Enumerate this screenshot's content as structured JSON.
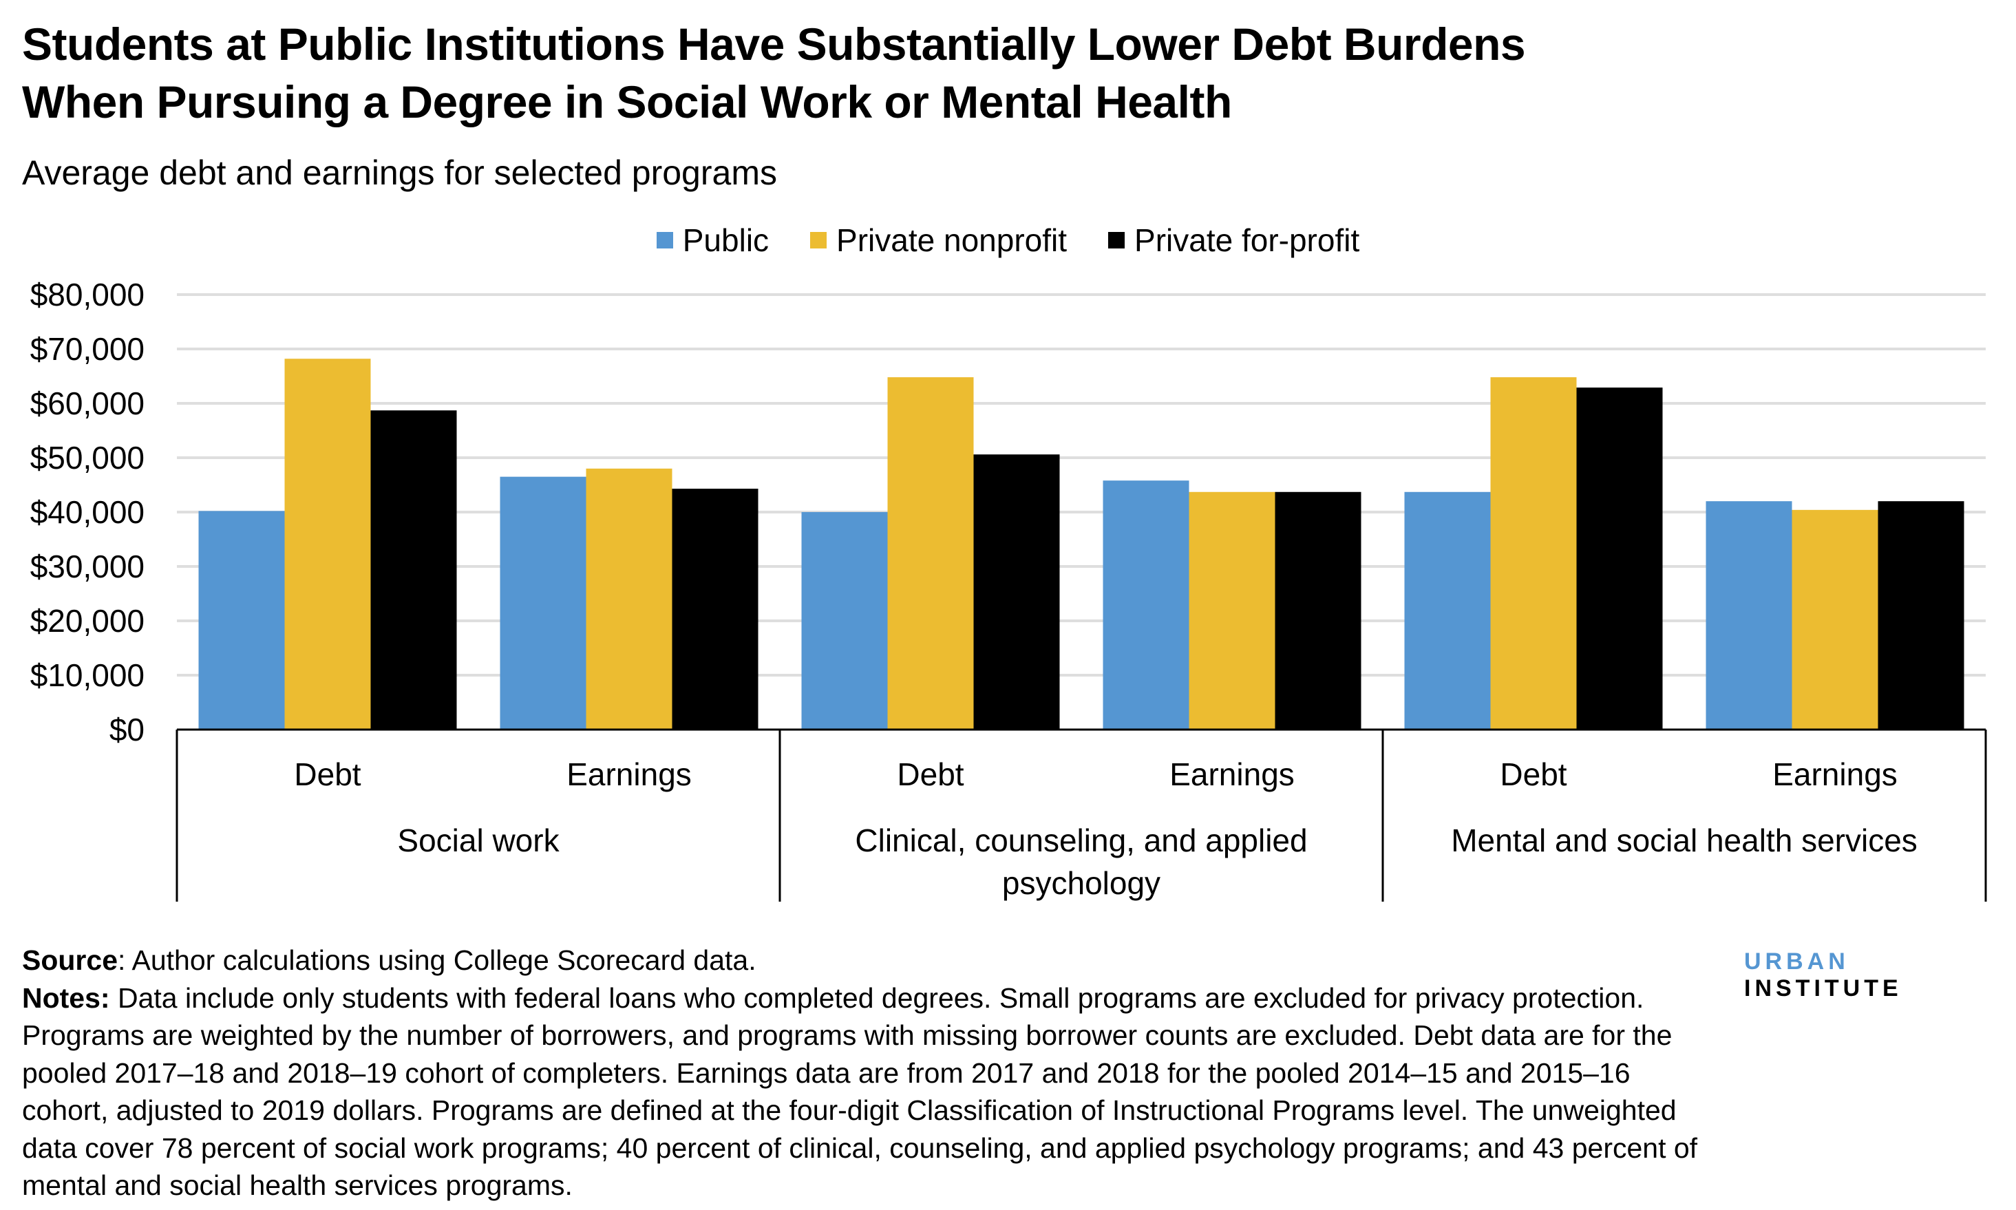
{
  "title_lines": [
    "Students at Public Institutions Have Substantially Lower Debt Burdens",
    "When Pursuing a Degree in Social Work or Mental Health"
  ],
  "subtitle": "Average debt and earnings for selected programs",
  "colors": {
    "Public": "#5596d2",
    "Private nonprofit": "#ecbc31",
    "Private for-profit": "#000000",
    "grid": "#dedede"
  },
  "chart_data": {
    "type": "bar",
    "title": "Students at Public Institutions Have Substantially Lower Debt Burdens When Pursuing a Degree in Social Work or Mental Health",
    "subtitle": "Average debt and earnings for selected programs",
    "ylim": [
      0,
      80000
    ],
    "yticks": [
      "$0",
      "$10,000",
      "$20,000",
      "$30,000",
      "$40,000",
      "$50,000",
      "$60,000",
      "$70,000",
      "$80,000"
    ],
    "grid": true,
    "legend": "top-center",
    "groups": [
      "Social work",
      "Clinical, counseling, and applied psychology",
      "Mental and social health services"
    ],
    "group_label_lines": [
      [
        "Social work"
      ],
      [
        "Clinical, counseling, and applied",
        "psychology"
      ],
      [
        "Mental and social health services"
      ]
    ],
    "categories": [
      "Debt",
      "Earnings",
      "Debt",
      "Earnings",
      "Debt",
      "Earnings"
    ],
    "series": [
      {
        "name": "Public",
        "values": [
          40200,
          46500,
          40000,
          45800,
          43700,
          42000
        ]
      },
      {
        "name": "Private nonprofit",
        "values": [
          68200,
          48000,
          64800,
          43700,
          64800,
          40400
        ]
      },
      {
        "name": "Private for-profit",
        "values": [
          58700,
          44300,
          50600,
          43700,
          62900,
          42000
        ]
      }
    ]
  },
  "footer": {
    "source_label": "Source",
    "source_text": ": Author calculations using College Scorecard data.",
    "notes_label": "Notes:",
    "notes_text": " Data include only students with federal loans who completed degrees. Small programs are excluded for privacy protection. Programs are weighted by the number of borrowers, and programs with missing borrower counts are excluded. Debt data are for the pooled 2017–18 and 2018–19 cohort of completers. Earnings data are from 2017 and 2018 for the pooled 2014–15 and 2015–16 cohort, adjusted to 2019 dollars. Programs are defined at the four-digit Classification of Instructional Programs level. The unweighted data cover 78 percent of social work programs; 40 percent of clinical, counseling, and applied psychology programs; and 43 percent of mental and social health services programs."
  },
  "logo": {
    "part1": "URBAN",
    "part2": "INSTITUTE"
  }
}
